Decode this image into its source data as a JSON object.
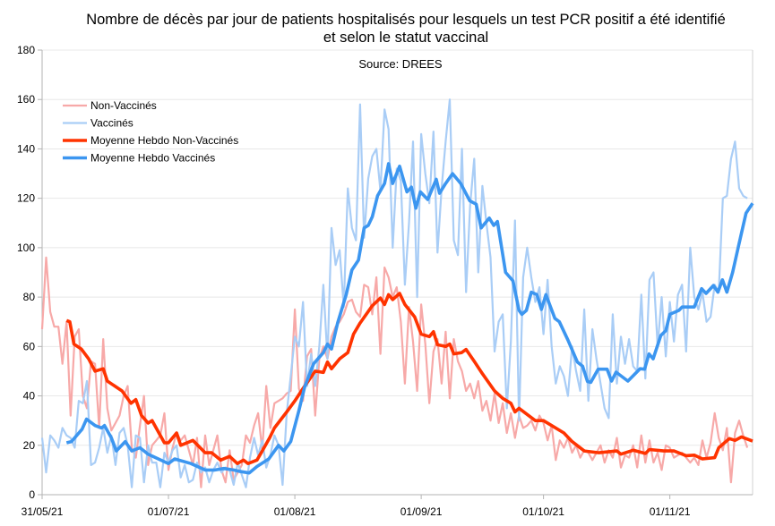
{
  "chart_data": {
    "type": "line",
    "title_lines": [
      "Nombre de décès par jour de patients hospitalisés pour lesquels un test PCR positif a été identifié",
      "et selon le statut vaccinal"
    ],
    "subtitle": "Source: DREES",
    "xlabel": "",
    "ylabel": "",
    "ylim": [
      0,
      180
    ],
    "yticks": [
      0,
      20,
      40,
      60,
      80,
      100,
      120,
      140,
      160,
      180
    ],
    "xlim_days": [
      0,
      174.3
    ],
    "x_unit": "days since 31/05/21",
    "xticks": [
      {
        "day": 0,
        "label": "31/05/21"
      },
      {
        "day": 31,
        "label": "01/07/21"
      },
      {
        "day": 62,
        "label": "01/08/21"
      },
      {
        "day": 93,
        "label": "01/09/21"
      },
      {
        "day": 123,
        "label": "01/10/21"
      },
      {
        "day": 154,
        "label": "01/11/21"
      }
    ],
    "grid": true,
    "legend_position": "top-left",
    "series": [
      {
        "name": "Non-Vaccinés",
        "color": "#f7a9a8",
        "width": 2.2,
        "daily_from_day0": [
          67,
          96,
          74,
          68,
          68,
          53,
          70,
          32,
          64,
          67,
          40,
          35,
          54,
          53,
          27,
          63,
          35,
          26,
          29,
          32,
          40,
          44,
          19,
          15,
          28,
          40,
          12,
          20,
          22,
          24,
          33,
          10,
          19,
          25,
          22,
          24,
          18,
          12,
          23,
          3,
          24,
          12,
          18,
          24,
          10,
          5,
          18,
          6,
          9,
          12,
          24,
          21,
          28,
          33,
          18,
          44,
          27,
          37,
          38,
          39,
          41,
          42,
          75,
          43,
          38,
          56,
          59,
          32,
          55,
          60,
          55,
          64,
          68,
          70,
          73,
          78,
          79,
          74,
          72,
          85,
          84,
          73,
          88,
          57,
          92,
          88,
          80,
          84,
          70,
          45,
          76,
          62,
          42,
          77,
          61,
          37,
          58,
          63,
          45,
          66,
          39,
          63,
          54,
          50,
          42,
          45,
          39,
          46,
          34,
          38,
          30,
          41,
          29,
          37,
          25,
          33,
          23,
          32,
          27,
          28,
          30,
          26,
          32,
          29,
          22,
          28,
          14,
          22,
          19,
          23,
          17,
          20,
          15,
          18,
          17,
          14,
          17,
          20,
          13,
          18,
          15,
          23,
          11,
          16,
          15,
          20,
          11,
          24,
          13,
          22,
          13,
          17,
          10,
          20,
          19,
          15,
          16,
          17,
          15,
          13,
          15,
          12,
          22,
          15,
          21,
          33,
          23,
          18,
          27,
          5,
          25,
          30,
          24,
          19
        ]
      },
      {
        "name": "Vaccinés",
        "color": "#a9cdf6",
        "width": 2.2,
        "daily_from_day0": [
          23,
          9,
          24,
          22,
          19,
          27,
          24,
          23,
          19,
          38,
          37,
          46,
          12,
          13,
          19,
          27,
          17,
          24,
          12,
          25,
          27,
          20,
          3,
          24,
          23,
          5,
          20,
          13,
          13,
          3,
          17,
          13,
          18,
          20,
          7,
          12,
          5,
          6,
          13,
          9,
          11,
          5,
          10,
          13,
          9,
          11,
          10,
          4,
          13,
          8,
          3,
          15,
          23,
          16,
          22,
          11,
          16,
          24,
          20,
          4,
          33,
          48,
          64,
          60,
          78,
          44,
          57,
          44,
          60,
          85,
          55,
          108,
          93,
          99,
          76,
          124,
          108,
          103,
          158,
          104,
          128,
          137,
          140,
          123,
          156,
          148,
          100,
          132,
          127,
          85,
          110,
          143,
          80,
          146,
          130,
          118,
          147,
          98,
          124,
          143,
          160,
          103,
          97,
          140,
          82,
          117,
          136,
          90,
          125,
          110,
          96,
          58,
          70,
          73,
          35,
          62,
          111,
          30,
          88,
          100,
          88,
          78,
          84,
          65,
          87,
          60,
          45,
          52,
          48,
          40,
          60,
          50,
          42,
          75,
          38,
          67,
          55,
          45,
          35,
          31,
          73,
          45,
          64,
          53,
          63,
          52,
          50,
          81,
          47,
          87,
          90,
          60,
          80,
          56,
          78,
          62,
          81,
          85,
          58,
          100,
          80,
          75,
          82,
          70,
          72,
          85,
          82,
          120,
          121,
          136,
          143,
          124,
          121,
          120
        ]
      },
      {
        "name": "Moyenne Hebdo Non-Vaccinés",
        "color": "#ff3300",
        "width": 3.6,
        "points": [
          [
            6,
            70.5
          ],
          [
            6.8,
            70
          ],
          [
            7.8,
            61
          ],
          [
            9.6,
            59
          ],
          [
            11.4,
            55
          ],
          [
            13,
            50
          ],
          [
            15,
            51
          ],
          [
            16,
            46
          ],
          [
            19.6,
            42
          ],
          [
            21.8,
            37
          ],
          [
            23,
            38.5
          ],
          [
            24.4,
            32
          ],
          [
            26,
            29
          ],
          [
            27,
            30
          ],
          [
            30,
            21
          ],
          [
            31,
            21
          ],
          [
            33,
            25
          ],
          [
            34,
            20
          ],
          [
            37,
            22
          ],
          [
            40,
            17
          ],
          [
            41.6,
            17
          ],
          [
            43.8,
            14
          ],
          [
            46,
            15.5
          ],
          [
            47.9,
            12.6
          ],
          [
            49.4,
            14
          ],
          [
            50.5,
            12.6
          ],
          [
            52.7,
            14
          ],
          [
            54,
            17.7
          ],
          [
            55.8,
            23
          ],
          [
            57,
            27
          ],
          [
            60,
            33.5
          ],
          [
            62,
            38
          ],
          [
            64,
            43
          ],
          [
            67,
            50
          ],
          [
            69,
            49.5
          ],
          [
            70,
            53.7
          ],
          [
            71,
            51
          ],
          [
            73,
            55
          ],
          [
            75,
            57.5
          ],
          [
            76.4,
            65
          ],
          [
            78,
            69.5
          ],
          [
            81,
            76.5
          ],
          [
            83,
            79.6
          ],
          [
            84,
            77
          ],
          [
            85,
            81
          ],
          [
            86,
            79
          ],
          [
            87.7,
            81.5
          ],
          [
            89,
            77
          ],
          [
            91.4,
            72
          ],
          [
            93,
            65
          ],
          [
            95,
            64
          ],
          [
            96,
            66
          ],
          [
            97,
            60.7
          ],
          [
            99,
            60
          ],
          [
            100,
            61
          ],
          [
            101,
            57
          ],
          [
            102.9,
            57.5
          ],
          [
            104,
            58.8
          ],
          [
            106,
            54
          ],
          [
            108,
            49
          ],
          [
            111,
            42
          ],
          [
            113,
            39
          ],
          [
            115,
            37
          ],
          [
            116,
            33.5
          ],
          [
            117,
            35
          ],
          [
            121,
            30
          ],
          [
            123,
            30
          ],
          [
            125,
            28
          ],
          [
            128,
            25
          ],
          [
            130,
            21.5
          ],
          [
            133,
            17.7
          ],
          [
            136.6,
            17
          ],
          [
            141,
            17.7
          ],
          [
            142,
            16.4
          ],
          [
            145,
            18
          ],
          [
            148,
            16.7
          ],
          [
            149,
            18.3
          ],
          [
            152.5,
            17.7
          ],
          [
            155,
            17.7
          ],
          [
            158,
            15.8
          ],
          [
            160,
            16
          ],
          [
            162,
            14.5
          ],
          [
            165,
            15
          ],
          [
            166,
            19
          ],
          [
            168.6,
            22.7
          ],
          [
            170,
            22
          ],
          [
            171.6,
            23.4
          ],
          [
            174.3,
            21.7
          ]
        ]
      },
      {
        "name": "Moyenne Hebdo Vaccinés",
        "color": "#3c96f0",
        "width": 3.6,
        "points": [
          [
            6,
            21
          ],
          [
            7.2,
            21.5
          ],
          [
            9.8,
            26.5
          ],
          [
            10.9,
            30.6
          ],
          [
            13,
            28
          ],
          [
            14.6,
            27
          ],
          [
            15.3,
            28
          ],
          [
            17,
            23
          ],
          [
            18.2,
            17.7
          ],
          [
            20.4,
            21.5
          ],
          [
            22,
            17.7
          ],
          [
            24,
            19
          ],
          [
            26,
            16.4
          ],
          [
            28.5,
            14.5
          ],
          [
            31,
            12.6
          ],
          [
            32.5,
            14.5
          ],
          [
            36.5,
            12.6
          ],
          [
            40,
            10
          ],
          [
            42.4,
            10
          ],
          [
            44.6,
            10.6
          ],
          [
            47,
            10
          ],
          [
            48.3,
            9.5
          ],
          [
            50.8,
            8.8
          ],
          [
            52.7,
            11.4
          ],
          [
            55.6,
            14.5
          ],
          [
            58,
            20
          ],
          [
            59.3,
            17.7
          ],
          [
            61,
            21.5
          ],
          [
            63,
            34
          ],
          [
            64.4,
            43.6
          ],
          [
            66.6,
            53
          ],
          [
            69,
            57.5
          ],
          [
            70,
            61
          ],
          [
            71,
            59
          ],
          [
            72.5,
            69.5
          ],
          [
            74.6,
            81
          ],
          [
            76,
            91
          ],
          [
            77.6,
            95
          ],
          [
            79,
            108
          ],
          [
            80,
            109
          ],
          [
            81,
            112.5
          ],
          [
            82.3,
            121
          ],
          [
            84,
            126
          ],
          [
            85,
            134
          ],
          [
            86,
            126
          ],
          [
            87.7,
            133
          ],
          [
            89.5,
            122.6
          ],
          [
            90.6,
            124.5
          ],
          [
            91.7,
            116
          ],
          [
            92.8,
            122.6
          ],
          [
            94.6,
            119.5
          ],
          [
            96.7,
            127.7
          ],
          [
            97.5,
            122
          ],
          [
            99,
            126
          ],
          [
            100.7,
            130
          ],
          [
            102.7,
            126
          ],
          [
            104.9,
            119
          ],
          [
            106.5,
            117.6
          ],
          [
            107.7,
            108
          ],
          [
            109.7,
            112
          ],
          [
            110.8,
            109
          ],
          [
            111.7,
            110.6
          ],
          [
            113.7,
            90
          ],
          [
            115.5,
            86.6
          ],
          [
            117,
            74.6
          ],
          [
            117.7,
            73
          ],
          [
            118.8,
            74.6
          ],
          [
            120,
            82
          ],
          [
            121.4,
            81
          ],
          [
            122.5,
            75
          ],
          [
            123.6,
            81
          ],
          [
            125.8,
            71.4
          ],
          [
            126.9,
            70
          ],
          [
            129,
            62.6
          ],
          [
            131.3,
            53.7
          ],
          [
            132.6,
            52
          ],
          [
            133.8,
            45.8
          ],
          [
            134.6,
            45.5
          ],
          [
            136.4,
            50.8
          ],
          [
            138.6,
            50.8
          ],
          [
            139.7,
            46
          ],
          [
            140.8,
            49.6
          ],
          [
            143.7,
            46
          ],
          [
            146.7,
            51
          ],
          [
            147.8,
            50.8
          ],
          [
            148.9,
            57
          ],
          [
            149.9,
            55
          ],
          [
            151.8,
            64.5
          ],
          [
            153,
            66.4
          ],
          [
            154,
            73
          ],
          [
            156.2,
            74.6
          ],
          [
            157,
            76
          ],
          [
            160,
            76
          ],
          [
            161.8,
            83.4
          ],
          [
            162.9,
            81.5
          ],
          [
            164.7,
            84.7
          ],
          [
            165.8,
            82
          ],
          [
            166.9,
            87
          ],
          [
            168,
            82
          ],
          [
            169.4,
            90
          ],
          [
            170.9,
            101
          ],
          [
            172.7,
            114
          ],
          [
            174.3,
            118
          ]
        ]
      }
    ]
  }
}
